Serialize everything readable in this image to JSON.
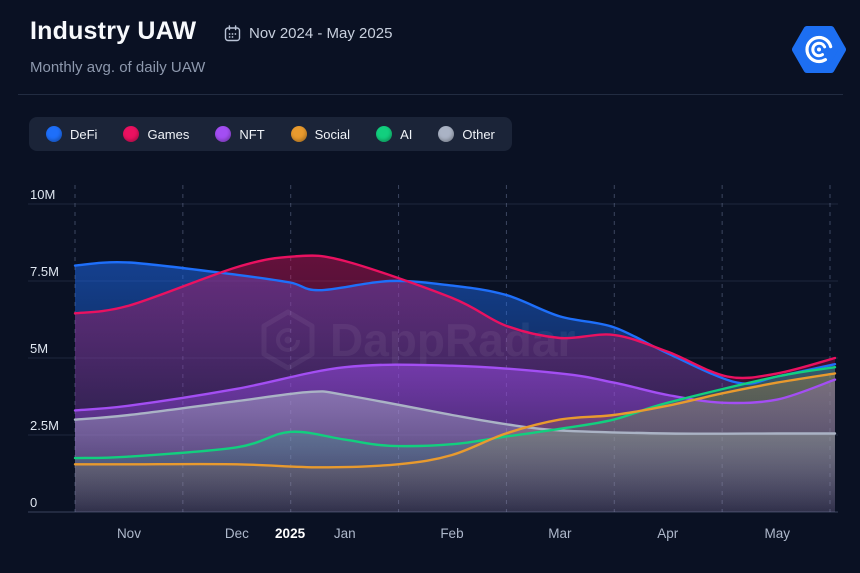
{
  "header": {
    "title": "Industry UAW",
    "date_range": "Nov 2024 - May 2025",
    "subtitle": "Monthly avg. of daily UAW",
    "logo_color": "#1d6ff2"
  },
  "legend": {
    "items": [
      {
        "label": "DeFi",
        "color": "#1e6ffa"
      },
      {
        "label": "Games",
        "color": "#ea1160"
      },
      {
        "label": "NFT",
        "color": "#a34ef3"
      },
      {
        "label": "Social",
        "color": "#e89a2e"
      },
      {
        "label": "AI",
        "color": "#12cf7e"
      },
      {
        "label": "Other",
        "color": "#aab3c5"
      }
    ]
  },
  "watermark": {
    "text": "DappRadar"
  },
  "chart_data": {
    "type": "area",
    "title": "Industry UAW",
    "subtitle": "Monthly avg. of daily UAW",
    "unit": "millions of unique active wallets",
    "ylim": [
      0,
      10
    ],
    "grid": {
      "vertical": "dashed",
      "horizontal": "solid"
    },
    "legend_position": "top-left",
    "y_ticks": [
      {
        "label": "0",
        "value": 0
      },
      {
        "label": "2.5M",
        "value": 2.5
      },
      {
        "label": "5M",
        "value": 5
      },
      {
        "label": "7.5M",
        "value": 7.5
      },
      {
        "label": "10M",
        "value": 10
      }
    ],
    "x_labels": [
      {
        "label": "Nov",
        "t": 0.071,
        "year_marker": false
      },
      {
        "label": "Dec",
        "t": 0.213,
        "year_marker": false
      },
      {
        "label": "2025",
        "t": 0.283,
        "year_marker": true
      },
      {
        "label": "Jan",
        "t": 0.355,
        "year_marker": false
      },
      {
        "label": "Feb",
        "t": 0.496,
        "year_marker": false
      },
      {
        "label": "Mar",
        "t": 0.638,
        "year_marker": false
      },
      {
        "label": "Apr",
        "t": 0.78,
        "year_marker": false
      },
      {
        "label": "May",
        "t": 0.924,
        "year_marker": false
      }
    ],
    "month_boundary_count": 8,
    "categories": [
      "Nov",
      "Dec",
      "Jan",
      "Feb",
      "Mar",
      "Apr",
      "May"
    ],
    "series": [
      {
        "name": "DeFi",
        "color": "#1e6ffa",
        "fill_top_opacity": 0.5,
        "fill_bottom_opacity": 0.03,
        "monthly_values": [
          8.1,
          7.7,
          7.35,
          7.35,
          6.35,
          5.15,
          4.4
        ],
        "curve_points": [
          [
            0,
            8.0
          ],
          [
            0.071,
            8.1
          ],
          [
            0.213,
            7.7
          ],
          [
            0.283,
            7.45
          ],
          [
            0.322,
            7.2
          ],
          [
            0.414,
            7.5
          ],
          [
            0.496,
            7.35
          ],
          [
            0.567,
            7.05
          ],
          [
            0.638,
            6.35
          ],
          [
            0.709,
            6.0
          ],
          [
            0.78,
            5.15
          ],
          [
            0.871,
            4.2
          ],
          [
            0.924,
            4.4
          ],
          [
            1,
            4.8
          ]
        ]
      },
      {
        "name": "Games",
        "color": "#ea1160",
        "fill_top_opacity": 0.4,
        "fill_bottom_opacity": 0.03,
        "monthly_values": [
          6.7,
          7.95,
          8.15,
          6.95,
          5.65,
          5.2,
          4.5
        ],
        "curve_points": [
          [
            0,
            6.45
          ],
          [
            0.071,
            6.7
          ],
          [
            0.213,
            7.95
          ],
          [
            0.289,
            8.3
          ],
          [
            0.355,
            8.15
          ],
          [
            0.496,
            6.95
          ],
          [
            0.567,
            6.05
          ],
          [
            0.638,
            5.65
          ],
          [
            0.709,
            5.75
          ],
          [
            0.78,
            5.2
          ],
          [
            0.858,
            4.4
          ],
          [
            0.924,
            4.5
          ],
          [
            1,
            5.0
          ]
        ]
      },
      {
        "name": "NFT",
        "color": "#a34ef3",
        "fill_top_opacity": 0.48,
        "fill_bottom_opacity": 0.08,
        "monthly_values": [
          3.45,
          4.0,
          4.7,
          4.75,
          4.5,
          3.8,
          3.65
        ],
        "curve_points": [
          [
            0,
            3.3
          ],
          [
            0.071,
            3.45
          ],
          [
            0.213,
            4.0
          ],
          [
            0.355,
            4.7
          ],
          [
            0.496,
            4.75
          ],
          [
            0.638,
            4.5
          ],
          [
            0.709,
            4.2
          ],
          [
            0.78,
            3.8
          ],
          [
            0.851,
            3.55
          ],
          [
            0.924,
            3.65
          ],
          [
            1,
            4.3
          ]
        ]
      },
      {
        "name": "Other",
        "color": "#aab3c5",
        "fill_top_opacity": 0.48,
        "fill_bottom_opacity": 0.1,
        "monthly_values": [
          3.15,
          3.6,
          3.8,
          3.15,
          2.65,
          2.55,
          2.55
        ],
        "curve_points": [
          [
            0,
            3.0
          ],
          [
            0.071,
            3.15
          ],
          [
            0.213,
            3.6
          ],
          [
            0.309,
            3.9
          ],
          [
            0.355,
            3.8
          ],
          [
            0.496,
            3.15
          ],
          [
            0.567,
            2.85
          ],
          [
            0.638,
            2.65
          ],
          [
            0.78,
            2.55
          ],
          [
            0.924,
            2.55
          ],
          [
            1,
            2.55
          ]
        ]
      },
      {
        "name": "AI",
        "color": "#12cf7e",
        "fill_top_opacity": 0.3,
        "fill_bottom_opacity": 0.03,
        "monthly_values": [
          1.8,
          2.1,
          2.35,
          2.2,
          2.7,
          3.55,
          4.4
        ],
        "curve_points": [
          [
            0,
            1.75
          ],
          [
            0.071,
            1.8
          ],
          [
            0.213,
            2.1
          ],
          [
            0.283,
            2.6
          ],
          [
            0.355,
            2.35
          ],
          [
            0.414,
            2.15
          ],
          [
            0.496,
            2.2
          ],
          [
            0.567,
            2.45
          ],
          [
            0.638,
            2.7
          ],
          [
            0.709,
            3.0
          ],
          [
            0.78,
            3.55
          ],
          [
            0.924,
            4.4
          ],
          [
            1,
            4.7
          ]
        ]
      },
      {
        "name": "Social",
        "color": "#e89a2e",
        "fill_top_opacity": 0.26,
        "fill_bottom_opacity": 0.03,
        "monthly_values": [
          1.55,
          1.55,
          1.45,
          1.85,
          3.0,
          3.45,
          4.2
        ],
        "curve_points": [
          [
            0,
            1.55
          ],
          [
            0.071,
            1.55
          ],
          [
            0.213,
            1.55
          ],
          [
            0.322,
            1.45
          ],
          [
            0.425,
            1.55
          ],
          [
            0.496,
            1.85
          ],
          [
            0.567,
            2.55
          ],
          [
            0.638,
            3.0
          ],
          [
            0.709,
            3.15
          ],
          [
            0.78,
            3.45
          ],
          [
            0.851,
            3.85
          ],
          [
            0.924,
            4.2
          ],
          [
            1,
            4.5
          ]
        ]
      }
    ]
  }
}
